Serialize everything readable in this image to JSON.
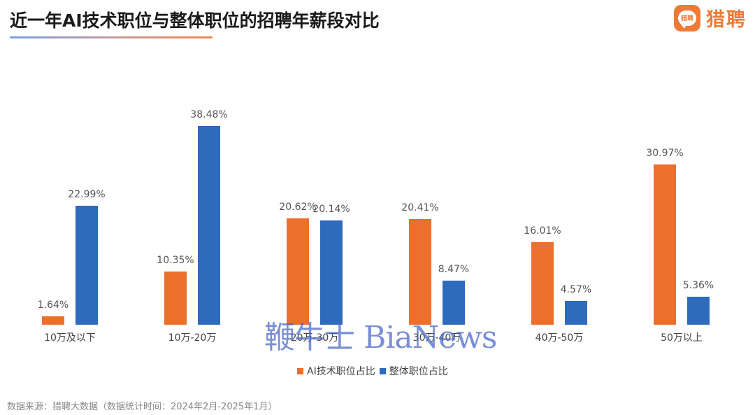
{
  "header": {
    "title": "近一年AI技术职位与整体职位的招聘年薪段对比",
    "logo_badge_text": "猎聘",
    "logo_text": "猎聘"
  },
  "colors": {
    "ai": "#ec6f2c",
    "overall": "#2e6bbd",
    "title_underline": [
      "#7a9ee8",
      "#ec8a50"
    ]
  },
  "chart_data": {
    "type": "bar",
    "title": "近一年AI技术职位与整体职位的招聘年薪段对比",
    "xlabel": "",
    "ylabel": "",
    "categories": [
      "10万及以下",
      "10万-20万",
      "20万-30万",
      "30万-40万",
      "40万-50万",
      "50万以上"
    ],
    "series": [
      {
        "name": "AI技术职位占比",
        "values": [
          1.64,
          10.35,
          20.62,
          20.41,
          16.01,
          30.97
        ],
        "labels": [
          "1.64%",
          "10.35%",
          "20.62%",
          "20.41%",
          "16.01%",
          "30.97%"
        ]
      },
      {
        "name": "整体职位占比",
        "values": [
          22.99,
          38.48,
          20.14,
          8.47,
          4.57,
          5.36
        ],
        "labels": [
          "22.99%",
          "38.48%",
          "20.14%",
          "8.47%",
          "4.57%",
          "5.36%"
        ]
      }
    ],
    "ylim": [
      0,
      40
    ],
    "grid": false,
    "legend_position": "bottom"
  },
  "legend": {
    "items": [
      {
        "label": "AI技术职位占比"
      },
      {
        "label": "整体职位占比"
      }
    ]
  },
  "footer": {
    "source": "数据来源：猎聘大数据（数据统计时间：2024年2月-2025年1月）"
  },
  "watermark": {
    "text": "鞭牛士 BiaNews"
  }
}
